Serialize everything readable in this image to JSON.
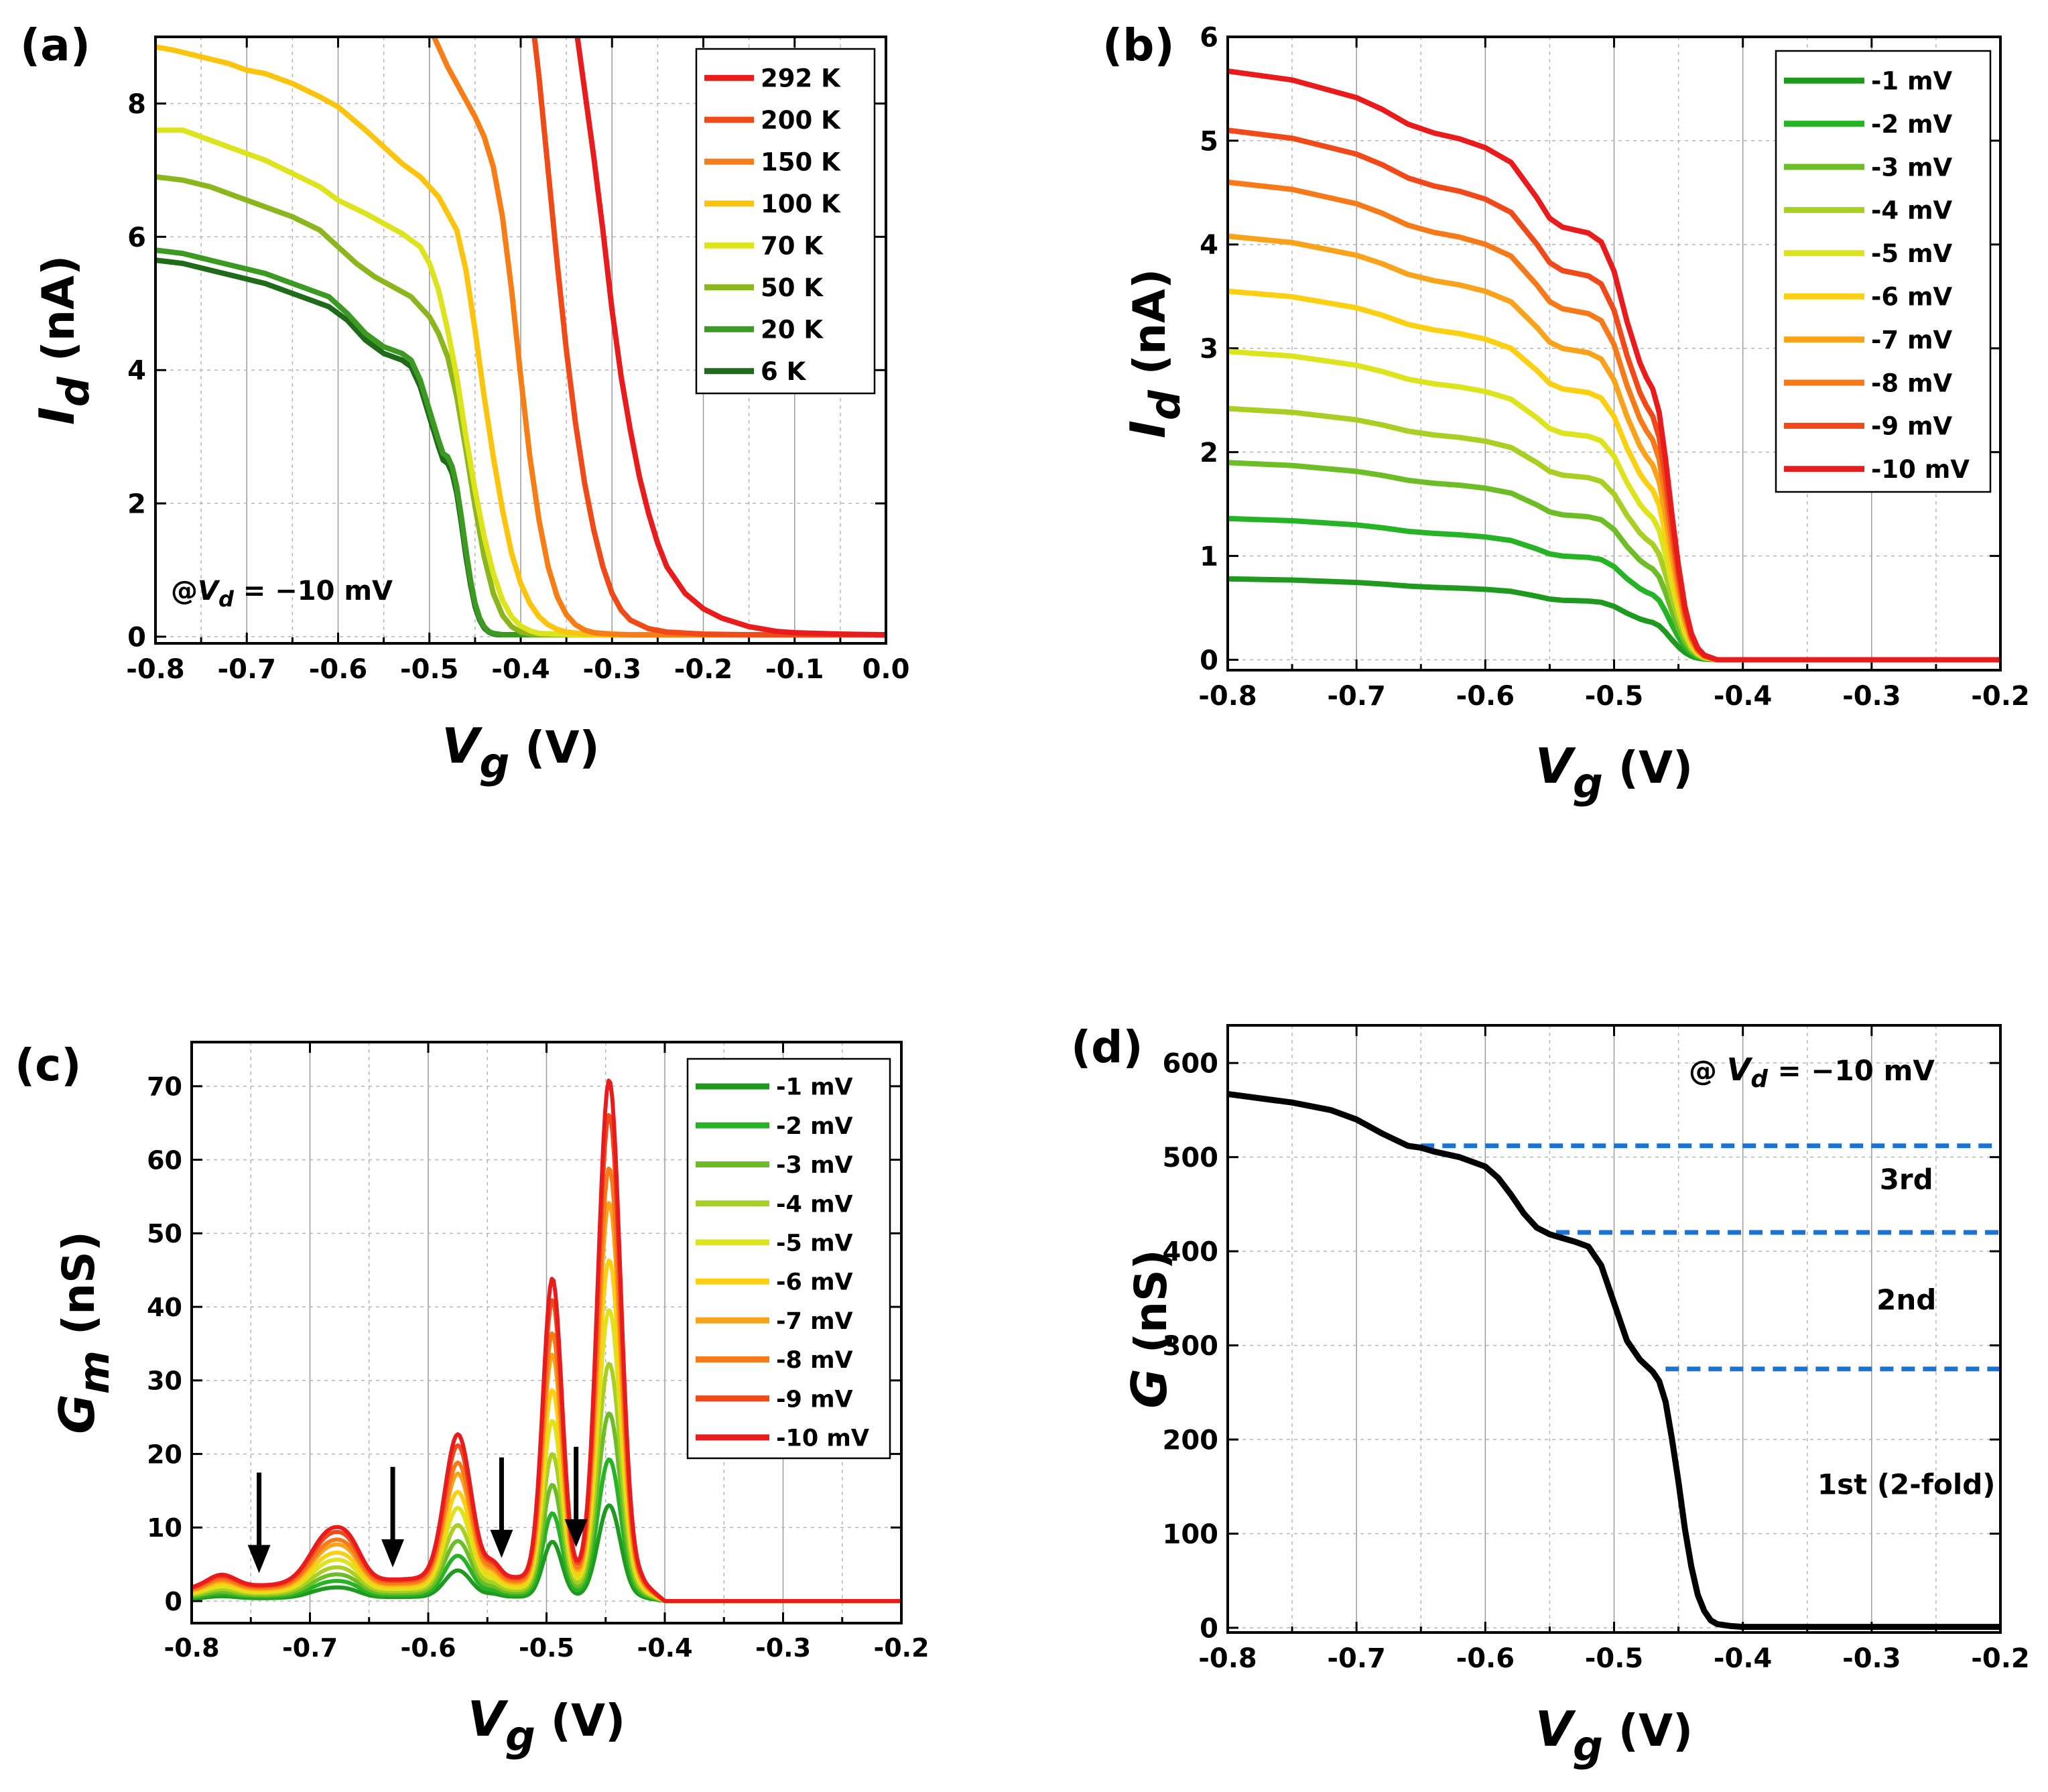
{
  "chart_data": [
    {
      "id": "a",
      "type": "line",
      "panel_label": "(a)",
      "xlabel_main": "V",
      "xlabel_sub": "g",
      "xlabel_unit": "(V)",
      "ylabel_main": "I",
      "ylabel_sub": "d",
      "ylabel_unit": "(nA)",
      "xlim": [
        -0.8,
        0.0
      ],
      "ylim": [
        -0.1,
        9.0
      ],
      "xticks": [
        -0.8,
        -0.7,
        -0.6,
        -0.5,
        -0.4,
        -0.3,
        -0.2,
        -0.1,
        0.0
      ],
      "xtick_labels": [
        "-0.8",
        "-0.7",
        "-0.6",
        "-0.5",
        "-0.4",
        "-0.3",
        "-0.2",
        "-0.1",
        "0.0"
      ],
      "yticks": [
        0,
        2,
        4,
        6,
        8
      ],
      "ytick_labels": [
        "0",
        "2",
        "4",
        "6",
        "8"
      ],
      "grid": true,
      "legend_position": "top-right",
      "annotation": {
        "prefix": "@",
        "v": "V",
        "sub": "d",
        "rest": " = −10 mV"
      },
      "series": [
        {
          "name": "292 K",
          "color": "#e81c1c",
          "x": [
            -0.338,
            -0.33,
            -0.32,
            -0.31,
            -0.3,
            -0.29,
            -0.28,
            -0.27,
            -0.26,
            -0.25,
            -0.24,
            -0.22,
            -0.2,
            -0.18,
            -0.15,
            -0.12,
            -0.1,
            -0.05,
            0.0
          ],
          "y": [
            9.0,
            8.2,
            7.2,
            6.1,
            4.9,
            3.9,
            3.1,
            2.4,
            1.85,
            1.4,
            1.05,
            0.65,
            0.42,
            0.28,
            0.15,
            0.08,
            0.06,
            0.04,
            0.03
          ]
        },
        {
          "name": "200 K",
          "color": "#f04a18",
          "x": [
            -0.385,
            -0.38,
            -0.37,
            -0.36,
            -0.35,
            -0.34,
            -0.33,
            -0.32,
            -0.31,
            -0.3,
            -0.29,
            -0.28,
            -0.26,
            -0.24,
            -0.2,
            -0.15,
            -0.1,
            -0.05,
            0.0
          ],
          "y": [
            9.0,
            8.4,
            7.0,
            5.6,
            4.3,
            3.2,
            2.3,
            1.6,
            1.05,
            0.65,
            0.4,
            0.25,
            0.12,
            0.07,
            0.04,
            0.03,
            0.03,
            0.03,
            0.03
          ]
        },
        {
          "name": "150 K",
          "color": "#f77e16",
          "x": [
            -0.495,
            -0.49,
            -0.48,
            -0.47,
            -0.46,
            -0.45,
            -0.44,
            -0.43,
            -0.42,
            -0.41,
            -0.4,
            -0.39,
            -0.38,
            -0.37,
            -0.36,
            -0.35,
            -0.34,
            -0.33,
            -0.32,
            -0.3,
            -0.28,
            -0.25,
            -0.2,
            -0.1,
            0.0
          ],
          "y": [
            9.0,
            8.85,
            8.55,
            8.3,
            8.05,
            7.8,
            7.5,
            7.05,
            6.3,
            5.2,
            3.9,
            2.7,
            1.75,
            1.05,
            0.6,
            0.33,
            0.18,
            0.1,
            0.06,
            0.04,
            0.03,
            0.03,
            0.03,
            0.03,
            0.03
          ]
        },
        {
          "name": "100 K",
          "color": "#fbc40e",
          "x": [
            -0.8,
            -0.78,
            -0.75,
            -0.72,
            -0.7,
            -0.68,
            -0.65,
            -0.62,
            -0.6,
            -0.57,
            -0.55,
            -0.53,
            -0.51,
            -0.49,
            -0.47,
            -0.46,
            -0.45,
            -0.44,
            -0.43,
            -0.42,
            -0.41,
            -0.4,
            -0.39,
            -0.38,
            -0.37,
            -0.36,
            -0.35,
            -0.33,
            -0.3,
            -0.25,
            -0.2,
            -0.1,
            0.0
          ],
          "y": [
            8.85,
            8.8,
            8.7,
            8.6,
            8.5,
            8.45,
            8.3,
            8.1,
            7.95,
            7.6,
            7.35,
            7.1,
            6.9,
            6.6,
            6.1,
            5.5,
            4.6,
            3.6,
            2.7,
            1.9,
            1.25,
            0.8,
            0.5,
            0.3,
            0.18,
            0.11,
            0.07,
            0.04,
            0.03,
            0.03,
            0.03,
            0.03,
            0.03
          ]
        },
        {
          "name": "70 K",
          "color": "#dde41e",
          "x": [
            -0.8,
            -0.77,
            -0.74,
            -0.71,
            -0.68,
            -0.65,
            -0.62,
            -0.6,
            -0.57,
            -0.55,
            -0.53,
            -0.51,
            -0.5,
            -0.49,
            -0.48,
            -0.47,
            -0.46,
            -0.45,
            -0.44,
            -0.43,
            -0.42,
            -0.41,
            -0.4,
            -0.39,
            -0.38,
            -0.36,
            -0.34,
            -0.3,
            -0.2,
            -0.1,
            0.0
          ],
          "y": [
            7.6,
            7.6,
            7.45,
            7.3,
            7.15,
            6.95,
            6.75,
            6.55,
            6.35,
            6.2,
            6.05,
            5.85,
            5.6,
            5.2,
            4.6,
            3.9,
            3.0,
            2.2,
            1.5,
            0.95,
            0.55,
            0.3,
            0.16,
            0.09,
            0.05,
            0.04,
            0.03,
            0.03,
            0.03,
            0.03,
            0.03
          ]
        },
        {
          "name": "50 K",
          "color": "#8bb61e",
          "x": [
            -0.8,
            -0.77,
            -0.74,
            -0.71,
            -0.68,
            -0.65,
            -0.62,
            -0.6,
            -0.58,
            -0.56,
            -0.54,
            -0.52,
            -0.51,
            -0.5,
            -0.49,
            -0.48,
            -0.47,
            -0.46,
            -0.45,
            -0.44,
            -0.43,
            -0.42,
            -0.41,
            -0.4,
            -0.39,
            -0.37,
            -0.35,
            -0.3,
            -0.2,
            -0.1,
            0.0
          ],
          "y": [
            6.9,
            6.85,
            6.75,
            6.6,
            6.45,
            6.3,
            6.1,
            5.85,
            5.6,
            5.4,
            5.25,
            5.1,
            4.95,
            4.8,
            4.55,
            4.2,
            3.6,
            2.8,
            1.95,
            1.2,
            0.65,
            0.32,
            0.15,
            0.07,
            0.04,
            0.03,
            0.03,
            0.03,
            0.03,
            0.03,
            0.03
          ]
        },
        {
          "name": "20 K",
          "color": "#3c9a22",
          "x": [
            -0.8,
            -0.77,
            -0.74,
            -0.71,
            -0.68,
            -0.65,
            -0.63,
            -0.61,
            -0.59,
            -0.57,
            -0.55,
            -0.54,
            -0.53,
            -0.52,
            -0.51,
            -0.5,
            -0.49,
            -0.485,
            -0.48,
            -0.475,
            -0.47,
            -0.465,
            -0.46,
            -0.455,
            -0.45,
            -0.445,
            -0.44,
            -0.435,
            -0.43,
            -0.425,
            -0.42,
            -0.41,
            -0.4,
            -0.38,
            -0.35,
            -0.3,
            -0.2,
            -0.1,
            0.0
          ],
          "y": [
            5.8,
            5.75,
            5.65,
            5.55,
            5.45,
            5.3,
            5.2,
            5.1,
            4.85,
            4.55,
            4.35,
            4.3,
            4.25,
            4.15,
            3.85,
            3.4,
            2.95,
            2.75,
            2.7,
            2.55,
            2.25,
            1.8,
            1.3,
            0.85,
            0.5,
            0.28,
            0.15,
            0.08,
            0.05,
            0.04,
            0.03,
            0.03,
            0.03,
            0.03,
            0.03,
            0.03,
            0.03,
            0.03,
            0.03
          ]
        },
        {
          "name": "6 K",
          "color": "#1f6b1a",
          "x": [
            -0.8,
            -0.77,
            -0.74,
            -0.71,
            -0.68,
            -0.65,
            -0.63,
            -0.61,
            -0.59,
            -0.57,
            -0.55,
            -0.54,
            -0.53,
            -0.52,
            -0.51,
            -0.5,
            -0.49,
            -0.485,
            -0.48,
            -0.475,
            -0.47,
            -0.465,
            -0.46,
            -0.455,
            -0.45,
            -0.445,
            -0.44,
            -0.435,
            -0.43,
            -0.425,
            -0.42,
            -0.41,
            -0.4,
            -0.38,
            -0.35,
            -0.3,
            -0.2,
            -0.1,
            0.0
          ],
          "y": [
            5.65,
            5.6,
            5.5,
            5.4,
            5.3,
            5.15,
            5.05,
            4.95,
            4.75,
            4.45,
            4.25,
            4.2,
            4.15,
            4.05,
            3.75,
            3.3,
            2.85,
            2.65,
            2.6,
            2.45,
            2.15,
            1.7,
            1.2,
            0.78,
            0.45,
            0.25,
            0.13,
            0.07,
            0.04,
            0.03,
            0.03,
            0.03,
            0.03,
            0.03,
            0.03,
            0.03,
            0.03,
            0.03,
            0.03
          ]
        }
      ]
    },
    {
      "id": "b",
      "type": "line",
      "panel_label": "(b)",
      "xlabel_main": "V",
      "xlabel_sub": "g",
      "xlabel_unit": "(V)",
      "ylabel_main": "I",
      "ylabel_sub": "d",
      "ylabel_unit": "(nA)",
      "xlim": [
        -0.8,
        -0.2
      ],
      "ylim": [
        -0.1,
        6.0
      ],
      "xticks": [
        -0.8,
        -0.7,
        -0.6,
        -0.5,
        -0.4,
        -0.3,
        -0.2
      ],
      "xtick_labels": [
        "-0.8",
        "-0.7",
        "-0.6",
        "-0.5",
        "-0.4",
        "-0.3",
        "-0.2"
      ],
      "yticks": [
        0,
        1,
        2,
        3,
        4,
        5,
        6
      ],
      "ytick_labels": [
        "0",
        "1",
        "2",
        "3",
        "4",
        "5",
        "6"
      ],
      "grid": true,
      "legend_position": "top-right",
      "shape_x": [
        -0.8,
        -0.75,
        -0.7,
        -0.68,
        -0.66,
        -0.64,
        -0.62,
        -0.6,
        -0.58,
        -0.57,
        -0.56,
        -0.55,
        -0.54,
        -0.53,
        -0.52,
        -0.51,
        -0.5,
        -0.49,
        -0.48,
        -0.475,
        -0.47,
        -0.465,
        -0.46,
        -0.455,
        -0.45,
        -0.445,
        -0.44,
        -0.435,
        -0.43,
        -0.42,
        -0.41,
        -0.4,
        -0.3,
        -0.2
      ],
      "shape_y": [
        1.0,
        0.985,
        0.955,
        0.935,
        0.91,
        0.895,
        0.885,
        0.87,
        0.845,
        0.815,
        0.785,
        0.75,
        0.735,
        0.73,
        0.725,
        0.71,
        0.66,
        0.575,
        0.505,
        0.48,
        0.46,
        0.42,
        0.34,
        0.245,
        0.16,
        0.09,
        0.045,
        0.02,
        0.008,
        0.0,
        0.0,
        0.0,
        0.0,
        0.0
      ],
      "series": [
        {
          "name": "-1 mV",
          "color": "#1f9a1f",
          "scale": 0.78
        },
        {
          "name": "-2 mV",
          "color": "#26b426",
          "scale": 1.36
        },
        {
          "name": "-3 mV",
          "color": "#6cbd26",
          "scale": 1.9
        },
        {
          "name": "-4 mV",
          "color": "#a9cf24",
          "scale": 2.42
        },
        {
          "name": "-5 mV",
          "color": "#dde41e",
          "scale": 2.97
        },
        {
          "name": "-6 mV",
          "color": "#fbd013",
          "scale": 3.55
        },
        {
          "name": "-7 mV",
          "color": "#f9a31c",
          "scale": 4.08
        },
        {
          "name": "-8 mV",
          "color": "#f77a1a",
          "scale": 4.6
        },
        {
          "name": "-9 mV",
          "color": "#f04a1a",
          "scale": 5.1
        },
        {
          "name": "-10 mV",
          "color": "#e81c1c",
          "scale": 5.67
        }
      ]
    },
    {
      "id": "c",
      "type": "line",
      "panel_label": "(c)",
      "xlabel_main": "V",
      "xlabel_sub": "g",
      "xlabel_unit": "(V)",
      "ylabel_main": "G",
      "ylabel_sub": "m",
      "ylabel_unit": "(nS)",
      "xlim": [
        -0.8,
        -0.2
      ],
      "ylim": [
        -3,
        76
      ],
      "xticks": [
        -0.8,
        -0.7,
        -0.6,
        -0.5,
        -0.4,
        -0.3,
        -0.2
      ],
      "xtick_labels": [
        "-0.8",
        "-0.7",
        "-0.6",
        "-0.5",
        "-0.4",
        "-0.3",
        "-0.2"
      ],
      "yticks": [
        0,
        10,
        20,
        30,
        40,
        50,
        60,
        70
      ],
      "ytick_labels": [
        "0",
        "10",
        "20",
        "30",
        "40",
        "50",
        "60",
        "70"
      ],
      "grid": true,
      "legend_position": "top-right",
      "arrows_x": [
        -0.743,
        -0.63,
        -0.538,
        -0.475
      ],
      "peaks": [
        {
          "center": -0.775,
          "width": 0.012,
          "amp": 0.025
        },
        {
          "center": -0.683,
          "width": 0.016,
          "amp": 0.1
        },
        {
          "center": -0.665,
          "width": 0.01,
          "amp": 0.035
        },
        {
          "center": -0.575,
          "width": 0.011,
          "amp": 0.285
        },
        {
          "center": -0.545,
          "width": 0.006,
          "amp": 0.025
        },
        {
          "center": -0.495,
          "width": 0.008,
          "amp": 0.6
        },
        {
          "center": -0.447,
          "width": 0.0095,
          "amp": 1.0
        }
      ],
      "baseline": [
        {
          "x": -0.8,
          "y": 0.025
        },
        {
          "x": -0.56,
          "y": 0.05
        },
        {
          "x": -0.42,
          "y": 0.04
        },
        {
          "x": -0.4,
          "y": 0.0
        }
      ],
      "series": [
        {
          "name": "-1 mV",
          "color": "#1f9a1f",
          "scale": 12.5
        },
        {
          "name": "-2 mV",
          "color": "#26b426",
          "scale": 18.5
        },
        {
          "name": "-3 mV",
          "color": "#6cbd26",
          "scale": 24.5
        },
        {
          "name": "-4 mV",
          "color": "#a9cf24",
          "scale": 31.0
        },
        {
          "name": "-5 mV",
          "color": "#dde41e",
          "scale": 38.0
        },
        {
          "name": "-6 mV",
          "color": "#fbd013",
          "scale": 44.5
        },
        {
          "name": "-7 mV",
          "color": "#f9a31c",
          "scale": 52.0
        },
        {
          "name": "-8 mV",
          "color": "#f77a1a",
          "scale": 56.5
        },
        {
          "name": "-9 mV",
          "color": "#f04a1a",
          "scale": 63.5
        },
        {
          "name": "-10 mV",
          "color": "#e81c1c",
          "scale": 68.0
        }
      ]
    },
    {
      "id": "d",
      "type": "line",
      "panel_label": "(d)",
      "xlabel_main": "V",
      "xlabel_sub": "g",
      "xlabel_unit": "(V)",
      "ylabel_main": "G",
      "ylabel_sub": "",
      "ylabel_unit": "(nS)",
      "xlim": [
        -0.8,
        -0.2
      ],
      "ylim": [
        -5,
        640
      ],
      "xticks": [
        -0.8,
        -0.7,
        -0.6,
        -0.5,
        -0.4,
        -0.3,
        -0.2
      ],
      "xtick_labels": [
        "-0.8",
        "-0.7",
        "-0.6",
        "-0.5",
        "-0.4",
        "-0.3",
        "-0.2"
      ],
      "yticks": [
        0,
        100,
        200,
        300,
        400,
        500,
        600
      ],
      "ytick_labels": [
        "0",
        "100",
        "200",
        "300",
        "400",
        "500",
        "600"
      ],
      "grid": true,
      "annotation": {
        "prefix": "@ ",
        "v": "V",
        "sub": "d",
        "rest": " = −10 mV"
      },
      "plateaus": [
        {
          "y": 512,
          "x_start": -0.65,
          "x_end": -0.2
        },
        {
          "y": 420,
          "x_start": -0.545,
          "x_end": -0.2
        },
        {
          "y": 275,
          "x_start": -0.46,
          "x_end": -0.2
        }
      ],
      "plateau_labels": [
        {
          "text": "3rd",
          "x": -0.273,
          "y": 466
        },
        {
          "text": "2nd",
          "x": -0.273,
          "y": 338
        },
        {
          "text": "1st (2-fold)",
          "x": -0.273,
          "y": 142
        }
      ],
      "series": [
        {
          "name": "G",
          "color": "#000000",
          "x": [
            -0.8,
            -0.75,
            -0.72,
            -0.7,
            -0.68,
            -0.66,
            -0.65,
            -0.64,
            -0.62,
            -0.6,
            -0.59,
            -0.58,
            -0.57,
            -0.56,
            -0.55,
            -0.54,
            -0.53,
            -0.52,
            -0.51,
            -0.5,
            -0.49,
            -0.48,
            -0.47,
            -0.465,
            -0.46,
            -0.455,
            -0.45,
            -0.445,
            -0.44,
            -0.435,
            -0.43,
            -0.425,
            -0.42,
            -0.41,
            -0.4,
            -0.3,
            -0.2
          ],
          "y": [
            567,
            558,
            550,
            540,
            525,
            512,
            510,
            506,
            500,
            490,
            478,
            460,
            440,
            425,
            418,
            414,
            410,
            405,
            385,
            345,
            305,
            285,
            272,
            262,
            240,
            200,
            155,
            105,
            65,
            35,
            18,
            8,
            4,
            2,
            1,
            1,
            1
          ]
        }
      ]
    }
  ]
}
